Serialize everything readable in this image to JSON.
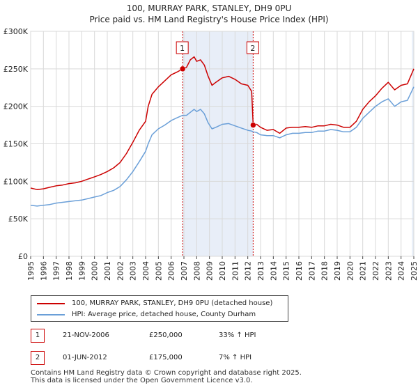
{
  "chart_data": {
    "type": "line",
    "title": "100, MURRAY PARK, STANLEY, DH9 0PU",
    "subtitle": "Price paid vs. HM Land Registry's House Price Index (HPI)",
    "xlabel": "",
    "ylabel": "",
    "xlim": [
      1995,
      2025
    ],
    "ylim": [
      0,
      300000
    ],
    "grid": true,
    "y_ticks": [
      {
        "value": 0,
        "label": "£0"
      },
      {
        "value": 50000,
        "label": "£50K"
      },
      {
        "value": 100000,
        "label": "£100K"
      },
      {
        "value": 150000,
        "label": "£150K"
      },
      {
        "value": 200000,
        "label": "£200K"
      },
      {
        "value": 250000,
        "label": "£250K"
      },
      {
        "value": 300000,
        "label": "£300K"
      }
    ],
    "x_ticks": [
      "1995",
      "1996",
      "1997",
      "1998",
      "1999",
      "2000",
      "2001",
      "2002",
      "2003",
      "2004",
      "2005",
      "2006",
      "2007",
      "2008",
      "2009",
      "2010",
      "2011",
      "2012",
      "2013",
      "2014",
      "2015",
      "2016",
      "2017",
      "2018",
      "2019",
      "2020",
      "2021",
      "2022",
      "2023",
      "2024",
      "2025"
    ],
    "series": [
      {
        "name": "100, MURRAY PARK, STANLEY, DH9 0PU (detached house)",
        "color": "#cc0000",
        "points": [
          [
            1995.0,
            91000
          ],
          [
            1995.5,
            89000
          ],
          [
            1996.0,
            90000
          ],
          [
            1996.5,
            92000
          ],
          [
            1997.0,
            94000
          ],
          [
            1997.5,
            95000
          ],
          [
            1998.0,
            97000
          ],
          [
            1998.5,
            98000
          ],
          [
            1999.0,
            100000
          ],
          [
            1999.5,
            103000
          ],
          [
            2000.0,
            106000
          ],
          [
            2000.5,
            109000
          ],
          [
            2001.0,
            113000
          ],
          [
            2001.5,
            118000
          ],
          [
            2002.0,
            125000
          ],
          [
            2002.5,
            137000
          ],
          [
            2003.0,
            152000
          ],
          [
            2003.5,
            168000
          ],
          [
            2004.0,
            180000
          ],
          [
            2004.2,
            200000
          ],
          [
            2004.5,
            216000
          ],
          [
            2005.0,
            226000
          ],
          [
            2005.5,
            234000
          ],
          [
            2006.0,
            242000
          ],
          [
            2006.5,
            246000
          ],
          [
            2006.9,
            250000
          ],
          [
            2007.2,
            252000
          ],
          [
            2007.5,
            262000
          ],
          [
            2007.8,
            266000
          ],
          [
            2008.0,
            260000
          ],
          [
            2008.3,
            262000
          ],
          [
            2008.6,
            255000
          ],
          [
            2008.9,
            240000
          ],
          [
            2009.2,
            228000
          ],
          [
            2009.5,
            232000
          ],
          [
            2010.0,
            238000
          ],
          [
            2010.5,
            240000
          ],
          [
            2011.0,
            236000
          ],
          [
            2011.5,
            230000
          ],
          [
            2012.0,
            228000
          ],
          [
            2012.3,
            220000
          ],
          [
            2012.42,
            175000
          ],
          [
            2012.7,
            176000
          ],
          [
            2013.0,
            172000
          ],
          [
            2013.5,
            168000
          ],
          [
            2014.0,
            169000
          ],
          [
            2014.5,
            164000
          ],
          [
            2015.0,
            171000
          ],
          [
            2015.5,
            172000
          ],
          [
            2016.0,
            172000
          ],
          [
            2016.5,
            173000
          ],
          [
            2017.0,
            172000
          ],
          [
            2017.5,
            174000
          ],
          [
            2018.0,
            174000
          ],
          [
            2018.5,
            176000
          ],
          [
            2019.0,
            175000
          ],
          [
            2019.5,
            172000
          ],
          [
            2020.0,
            172000
          ],
          [
            2020.5,
            180000
          ],
          [
            2021.0,
            196000
          ],
          [
            2021.5,
            206000
          ],
          [
            2022.0,
            214000
          ],
          [
            2022.5,
            224000
          ],
          [
            2023.0,
            232000
          ],
          [
            2023.5,
            222000
          ],
          [
            2024.0,
            228000
          ],
          [
            2024.5,
            230000
          ],
          [
            2025.0,
            250000
          ]
        ]
      },
      {
        "name": "HPI: Average price, detached house, County Durham",
        "color": "#6a9fd8",
        "points": [
          [
            1995.0,
            68000
          ],
          [
            1995.5,
            67000
          ],
          [
            1996.0,
            68000
          ],
          [
            1996.5,
            69000
          ],
          [
            1997.0,
            71000
          ],
          [
            1997.5,
            72000
          ],
          [
            1998.0,
            73000
          ],
          [
            1998.5,
            74000
          ],
          [
            1999.0,
            75000
          ],
          [
            1999.5,
            77000
          ],
          [
            2000.0,
            79000
          ],
          [
            2000.5,
            81000
          ],
          [
            2001.0,
            85000
          ],
          [
            2001.5,
            88000
          ],
          [
            2002.0,
            93000
          ],
          [
            2002.5,
            102000
          ],
          [
            2003.0,
            113000
          ],
          [
            2003.5,
            126000
          ],
          [
            2004.0,
            140000
          ],
          [
            2004.2,
            150000
          ],
          [
            2004.5,
            162000
          ],
          [
            2005.0,
            170000
          ],
          [
            2005.5,
            175000
          ],
          [
            2006.0,
            181000
          ],
          [
            2006.5,
            185000
          ],
          [
            2006.9,
            188000
          ],
          [
            2007.2,
            188000
          ],
          [
            2007.5,
            192000
          ],
          [
            2007.8,
            196000
          ],
          [
            2008.0,
            193000
          ],
          [
            2008.3,
            196000
          ],
          [
            2008.6,
            190000
          ],
          [
            2008.9,
            178000
          ],
          [
            2009.2,
            170000
          ],
          [
            2009.5,
            172000
          ],
          [
            2010.0,
            176000
          ],
          [
            2010.5,
            177000
          ],
          [
            2011.0,
            174000
          ],
          [
            2011.5,
            171000
          ],
          [
            2012.0,
            168000
          ],
          [
            2012.3,
            167000
          ],
          [
            2012.42,
            166000
          ],
          [
            2012.7,
            165000
          ],
          [
            2013.0,
            162000
          ],
          [
            2013.5,
            161000
          ],
          [
            2014.0,
            161000
          ],
          [
            2014.5,
            158000
          ],
          [
            2015.0,
            162000
          ],
          [
            2015.5,
            164000
          ],
          [
            2016.0,
            164000
          ],
          [
            2016.5,
            165000
          ],
          [
            2017.0,
            165000
          ],
          [
            2017.5,
            167000
          ],
          [
            2018.0,
            167000
          ],
          [
            2018.5,
            169000
          ],
          [
            2019.0,
            168000
          ],
          [
            2019.5,
            166000
          ],
          [
            2020.0,
            166000
          ],
          [
            2020.5,
            172000
          ],
          [
            2021.0,
            184000
          ],
          [
            2021.5,
            192000
          ],
          [
            2022.0,
            200000
          ],
          [
            2022.5,
            206000
          ],
          [
            2023.0,
            210000
          ],
          [
            2023.5,
            200000
          ],
          [
            2024.0,
            206000
          ],
          [
            2024.5,
            208000
          ],
          [
            2025.0,
            226000
          ]
        ]
      }
    ],
    "sales": [
      {
        "id": "1",
        "x": 2006.9,
        "value": 250000
      },
      {
        "id": "2",
        "x": 2012.42,
        "value": 175000
      }
    ],
    "highlight_range": [
      2006.9,
      2012.42
    ],
    "colors": {
      "price": "#cc0000",
      "hpi": "#6a9fd8",
      "band": "#e8eef8",
      "grid": "#d9d9d9",
      "marker": "#cc0000"
    }
  },
  "legend": {
    "price_label": "100, MURRAY PARK, STANLEY, DH9 0PU (detached house)",
    "hpi_label": "HPI: Average price, detached house, County Durham"
  },
  "transactions": [
    {
      "id": "1",
      "date": "21-NOV-2006",
      "price": "£250,000",
      "hpi": "33% ↑ HPI"
    },
    {
      "id": "2",
      "date": "01-JUN-2012",
      "price": "£175,000",
      "hpi": "7% ↑ HPI"
    }
  ],
  "footer": {
    "line1": "Contains HM Land Registry data © Crown copyright and database right 2025.",
    "line2": "This data is licensed under the Open Government Licence v3.0."
  }
}
